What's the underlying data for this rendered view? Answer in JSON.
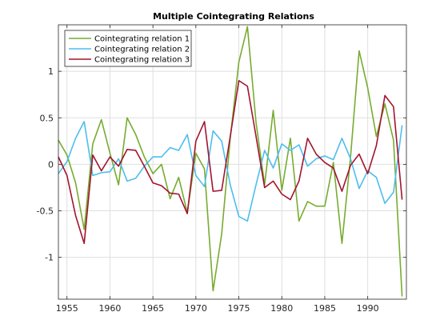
{
  "chart_data": {
    "type": "line",
    "title": "Multiple Cointegrating Relations",
    "xlabel": "",
    "ylabel": "",
    "xlim": [
      1954,
      1994.5
    ],
    "ylim": [
      -1.45,
      1.5
    ],
    "xticks": [
      1955,
      1960,
      1965,
      1970,
      1975,
      1980,
      1985,
      1990
    ],
    "yticks": [
      -1,
      -0.5,
      0,
      0.5,
      1
    ],
    "ytick_labels": [
      "-1",
      "-0.5",
      "0",
      "0.5",
      "1"
    ],
    "grid": true,
    "legend_placement": "top-left",
    "x": [
      1954,
      1955,
      1956,
      1957,
      1958,
      1959,
      1960,
      1961,
      1962,
      1963,
      1964,
      1965,
      1966,
      1967,
      1968,
      1969,
      1970,
      1971,
      1972,
      1973,
      1974,
      1975,
      1976,
      1977,
      1978,
      1979,
      1980,
      1981,
      1982,
      1983,
      1984,
      1985,
      1986,
      1987,
      1988,
      1989,
      1990,
      1991,
      1992,
      1993,
      1994
    ],
    "series": [
      {
        "name": "Cointegrating relation  1",
        "color": "#77ac30",
        "values": [
          0.26,
          0.1,
          -0.2,
          -0.7,
          0.22,
          0.48,
          0.12,
          -0.22,
          0.5,
          0.32,
          0.08,
          -0.1,
          0.0,
          -0.37,
          -0.14,
          -0.52,
          0.12,
          -0.05,
          -1.36,
          -0.75,
          0.28,
          1.1,
          1.48,
          0.45,
          -0.22,
          0.58,
          -0.28,
          0.28,
          -0.61,
          -0.4,
          -0.45,
          -0.45,
          0.02,
          -0.85,
          0.08,
          1.22,
          0.82,
          0.3,
          0.65,
          0.26,
          -1.42
        ]
      },
      {
        "name": "Cointegrating relation  2",
        "color": "#4dbeee",
        "values": [
          -0.1,
          0.03,
          0.28,
          0.46,
          -0.12,
          -0.09,
          -0.08,
          0.06,
          -0.18,
          -0.15,
          -0.02,
          0.08,
          0.08,
          0.18,
          0.15,
          0.32,
          -0.12,
          -0.24,
          0.36,
          0.25,
          -0.22,
          -0.56,
          -0.61,
          -0.22,
          0.15,
          -0.04,
          0.22,
          0.15,
          0.21,
          -0.02,
          0.06,
          0.09,
          0.05,
          0.28,
          0.06,
          -0.26,
          -0.07,
          -0.14,
          -0.42,
          -0.3,
          0.42
        ]
      },
      {
        "name": "Cointegrating relation  3",
        "color": "#a2142f",
        "values": [
          0.08,
          -0.12,
          -0.55,
          -0.85,
          0.1,
          -0.07,
          0.08,
          -0.02,
          0.16,
          0.15,
          -0.02,
          -0.2,
          -0.23,
          -0.31,
          -0.32,
          -0.53,
          0.25,
          0.46,
          -0.29,
          -0.28,
          0.3,
          0.9,
          0.84,
          0.3,
          -0.25,
          -0.18,
          -0.32,
          -0.38,
          -0.18,
          0.28,
          0.11,
          0.02,
          -0.04,
          -0.29,
          -0.01,
          0.11,
          -0.1,
          0.2,
          0.74,
          0.62,
          -0.38
        ]
      }
    ]
  }
}
